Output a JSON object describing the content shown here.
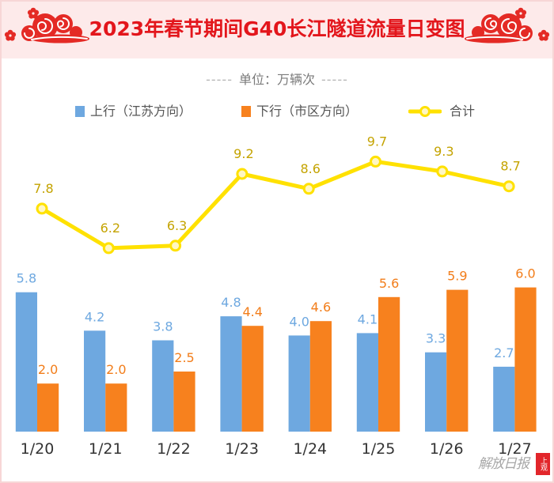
{
  "decor": {
    "dash": "-----"
  },
  "chart_data": {
    "type": "bar",
    "title": "2023年春节期间G40长江隧道流量日变图",
    "unit": "单位：万辆次",
    "xlabel": "",
    "ylabel": "",
    "grid": false,
    "legend_position": "top",
    "categories": [
      "1/20",
      "1/21",
      "1/22",
      "1/23",
      "1/24",
      "1/25",
      "1/26",
      "1/27"
    ],
    "series": [
      {
        "name": "上行（江苏方向）",
        "type": "bar",
        "color": "#6ea8e0",
        "label_color": "#6ea8e0",
        "values": [
          5.8,
          4.2,
          3.8,
          4.8,
          4.0,
          4.1,
          3.3,
          2.7
        ],
        "value_labels": [
          "5.8",
          "4.2",
          "3.8",
          "4.8",
          "4.0",
          "4.1",
          "3.3",
          "2.7"
        ]
      },
      {
        "name": "下行（市区方向）",
        "type": "bar",
        "color": "#f7811e",
        "label_color": "#f27d1a",
        "values": [
          2.0,
          2.0,
          2.5,
          4.4,
          4.6,
          5.6,
          5.9,
          6.0
        ],
        "value_labels": [
          "2.0",
          "2.0",
          "2.5",
          "4.4",
          "4.6",
          "5.6",
          "5.9",
          "6.0"
        ]
      },
      {
        "name": "合计",
        "type": "line",
        "color": "#ffe100",
        "label_color": "#c4a300",
        "values": [
          7.8,
          6.2,
          6.3,
          9.2,
          8.6,
          9.7,
          9.3,
          8.7
        ],
        "value_labels": [
          "7.8",
          "6.2",
          "6.3",
          "9.2",
          "8.6",
          "9.7",
          "9.3",
          "8.7"
        ]
      }
    ]
  },
  "watermark": {
    "logo_text": "解放日报",
    "stamp_text": "上观"
  }
}
